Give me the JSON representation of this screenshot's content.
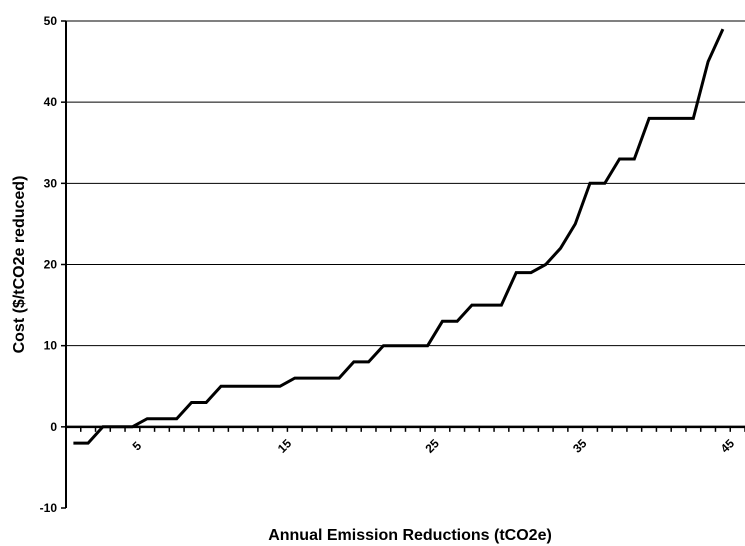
{
  "chart_data": {
    "type": "line",
    "title": "",
    "xlabel": "Annual Emission Reductions (tCO2e)",
    "ylabel": "Cost ($/tCO2e reduced)",
    "xlim": [
      0,
      46
    ],
    "ylim": [
      -10,
      50
    ],
    "xticks": [
      5,
      15,
      25,
      35,
      45
    ],
    "yticks": [
      -10,
      0,
      10,
      20,
      30,
      40,
      50
    ],
    "grid": "horizontal",
    "legend": "none",
    "series": [
      {
        "color": "#000000",
        "x": [
          0.5,
          1.5,
          2.5,
          3.5,
          4.5,
          5.5,
          6.5,
          7.5,
          8.5,
          9.5,
          10.5,
          11.5,
          12.5,
          13.5,
          14.5,
          15.5,
          16.5,
          17.5,
          18.5,
          19.5,
          20.5,
          21.5,
          22.5,
          23.5,
          24.5,
          25.5,
          26.5,
          27.5,
          28.5,
          29.5,
          30.5,
          31.5,
          32.5,
          33.5,
          34.5,
          35.5,
          36.5,
          37.5,
          38.5,
          39.5,
          40.5,
          41.5,
          42.5,
          43.5,
          44.5
        ],
        "values": [
          -2,
          -2,
          0,
          0,
          0,
          1,
          1,
          1,
          3,
          3,
          5,
          5,
          5,
          5,
          5,
          6,
          6,
          6,
          6,
          8,
          8,
          10,
          10,
          10,
          10,
          13,
          13,
          15,
          15,
          15,
          19,
          19,
          20,
          22,
          25,
          30,
          30,
          33,
          33,
          38,
          38,
          38,
          38,
          45,
          49
        ]
      }
    ]
  }
}
